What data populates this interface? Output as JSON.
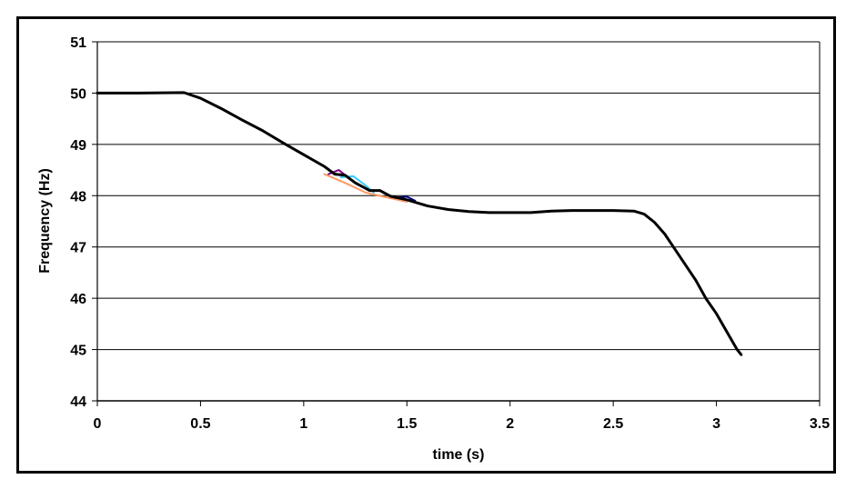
{
  "chart_data": {
    "type": "line",
    "title": "",
    "xlabel": "time (s)",
    "ylabel": "Frequency (Hz)",
    "xlim": [
      0,
      3.5
    ],
    "ylim": [
      44,
      51
    ],
    "x_ticks": [
      "0",
      "0.5",
      "1",
      "1.5",
      "2",
      "2.5",
      "3",
      "3.5"
    ],
    "y_ticks": [
      "44",
      "45",
      "46",
      "47",
      "48",
      "49",
      "50",
      "51"
    ],
    "grid": "horizontal",
    "legend": "none",
    "series": [
      {
        "color": "#ff9966",
        "points": [
          [
            1.1,
            48.42
          ],
          [
            1.2,
            48.25
          ],
          [
            1.3,
            48.06
          ],
          [
            1.4,
            47.97
          ],
          [
            1.5,
            47.88
          ]
        ]
      },
      {
        "color": "#800080",
        "points": [
          [
            1.12,
            48.42
          ],
          [
            1.17,
            48.5
          ],
          [
            1.22,
            48.34
          ]
        ]
      },
      {
        "color": "#33ccff",
        "points": [
          [
            1.18,
            48.36
          ],
          [
            1.24,
            48.38
          ],
          [
            1.3,
            48.2
          ],
          [
            1.34,
            48.06
          ]
        ]
      },
      {
        "color": "#000080",
        "points": [
          [
            1.44,
            47.96
          ],
          [
            1.5,
            47.98
          ],
          [
            1.54,
            47.9
          ]
        ]
      },
      {
        "color": "#000000",
        "points": [
          [
            0.0,
            50.0
          ],
          [
            0.2,
            50.0
          ],
          [
            0.42,
            50.01
          ],
          [
            0.5,
            49.9
          ],
          [
            0.6,
            49.7
          ],
          [
            0.7,
            49.48
          ],
          [
            0.8,
            49.27
          ],
          [
            0.9,
            49.03
          ],
          [
            1.0,
            48.8
          ],
          [
            1.1,
            48.57
          ],
          [
            1.15,
            48.42
          ],
          [
            1.2,
            48.4
          ],
          [
            1.25,
            48.25
          ],
          [
            1.32,
            48.1
          ],
          [
            1.37,
            48.1
          ],
          [
            1.42,
            47.99
          ],
          [
            1.5,
            47.92
          ],
          [
            1.6,
            47.8
          ],
          [
            1.7,
            47.73
          ],
          [
            1.8,
            47.69
          ],
          [
            1.9,
            47.67
          ],
          [
            2.0,
            47.67
          ],
          [
            2.1,
            47.67
          ],
          [
            2.2,
            47.7
          ],
          [
            2.3,
            47.71
          ],
          [
            2.4,
            47.71
          ],
          [
            2.5,
            47.71
          ],
          [
            2.6,
            47.7
          ],
          [
            2.65,
            47.64
          ],
          [
            2.7,
            47.48
          ],
          [
            2.75,
            47.25
          ],
          [
            2.8,
            46.95
          ],
          [
            2.85,
            46.65
          ],
          [
            2.9,
            46.35
          ],
          [
            2.95,
            45.99
          ],
          [
            3.0,
            45.7
          ],
          [
            3.05,
            45.35
          ],
          [
            3.1,
            45.0
          ],
          [
            3.12,
            44.9
          ]
        ]
      }
    ]
  }
}
